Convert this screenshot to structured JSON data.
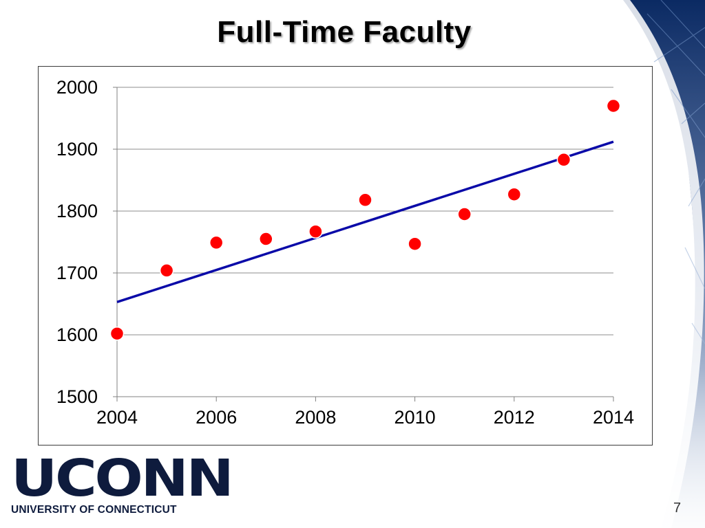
{
  "slide": {
    "title": "Full-Time Faculty",
    "number": "7"
  },
  "logo": {
    "wordmark": "UCONN",
    "subtitle": "UNIVERSITY OF CONNECTICUT"
  },
  "colors": {
    "point_fill": "#ff0000",
    "trend_line": "#0a0aa8",
    "gridline": "#8c8c8c",
    "brand_navy": "#0e1b3d"
  },
  "chart_data": {
    "type": "scatter",
    "title": "",
    "xlabel": "",
    "ylabel": "",
    "xlim": [
      2004,
      2014
    ],
    "ylim": [
      1500,
      2000
    ],
    "x_ticks": [
      2004,
      2006,
      2008,
      2010,
      2012,
      2014
    ],
    "y_ticks": [
      1500,
      1600,
      1700,
      1800,
      1900,
      2000
    ],
    "grid": "horizontal",
    "legend": "none",
    "series": [
      {
        "x": [
          2004,
          2005,
          2006,
          2007,
          2008,
          2009,
          2010,
          2011,
          2012,
          2013,
          2014
        ],
        "y": [
          1602,
          1704,
          1749,
          1755,
          1767,
          1818,
          1747,
          1795,
          1827,
          1883,
          1970
        ]
      }
    ],
    "trendline": {
      "type": "linear",
      "x": [
        2004,
        2014
      ],
      "y": [
        1653,
        1912
      ]
    }
  }
}
